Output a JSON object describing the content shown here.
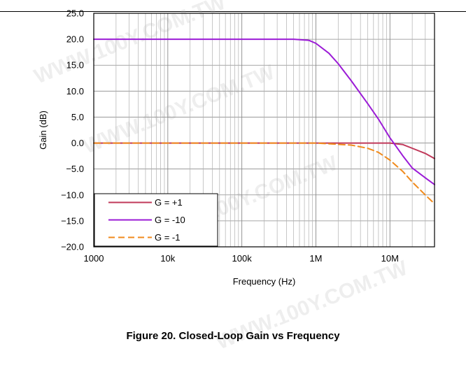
{
  "watermark": "WWW.100Y.COM.TW",
  "caption": "Figure 20. Closed-Loop Gain vs Frequency",
  "chart_data": {
    "type": "line",
    "xlabel": "Frequency (Hz)",
    "ylabel": "Gain (dB)",
    "x_scale": "log",
    "xlim": [
      1000,
      40000000
    ],
    "ylim": [
      -20,
      25
    ],
    "x_ticks": [
      1000,
      10000,
      100000,
      1000000,
      10000000
    ],
    "x_tick_labels": [
      "1000",
      "10k",
      "100k",
      "1M",
      "10M"
    ],
    "y_ticks": [
      25,
      20,
      15,
      10,
      5,
      0,
      -5,
      -10,
      -15,
      -20
    ],
    "y_tick_labels": [
      "25.0",
      "20.0",
      "15.0",
      "10.0",
      "5.0",
      "0.0",
      "−5.0",
      "−10.0",
      "−15.0",
      "−20.0"
    ],
    "grid": true,
    "legend_position": "bottom-left",
    "series": [
      {
        "name": "G = +1",
        "color": "#c0395a",
        "dash": "solid",
        "x": [
          1000,
          100000,
          1000000,
          5000000,
          10000000,
          15000000,
          20000000,
          30000000,
          40000000
        ],
        "y": [
          0,
          0,
          0,
          0,
          0,
          -0.3,
          -1.0,
          -2.0,
          -3.0
        ]
      },
      {
        "name": "G = -10",
        "color": "#9b1bd6",
        "dash": "solid",
        "x": [
          1000,
          100000,
          500000,
          800000,
          1000000,
          1500000,
          2000000,
          3000000,
          5000000,
          7000000,
          10000000,
          15000000,
          20000000,
          30000000,
          40000000
        ],
        "y": [
          20,
          20,
          20,
          19.8,
          19.2,
          17.3,
          15.3,
          12.0,
          7.6,
          4.6,
          1.0,
          -2.5,
          -4.8,
          -6.7,
          -8.0
        ]
      },
      {
        "name": "G = -1",
        "color": "#f08a1c",
        "dash": "dashed",
        "x": [
          1000,
          1000000,
          3000000,
          5000000,
          7000000,
          10000000,
          15000000,
          20000000,
          30000000,
          40000000
        ],
        "y": [
          0,
          0,
          -0.4,
          -1.0,
          -1.8,
          -3.3,
          -5.5,
          -7.5,
          -10.0,
          -11.7
        ]
      }
    ]
  }
}
